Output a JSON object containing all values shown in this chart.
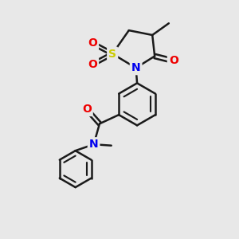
{
  "bg_color": "#e8e8e8",
  "bond_color": "#1a1a1a",
  "atom_colors": {
    "S": "#cccc00",
    "N": "#0000ee",
    "O": "#ee0000",
    "C": "#1a1a1a"
  },
  "bond_width": 1.8,
  "font_size_atom": 10,
  "figsize": [
    3.0,
    3.0
  ],
  "dpi": 100
}
